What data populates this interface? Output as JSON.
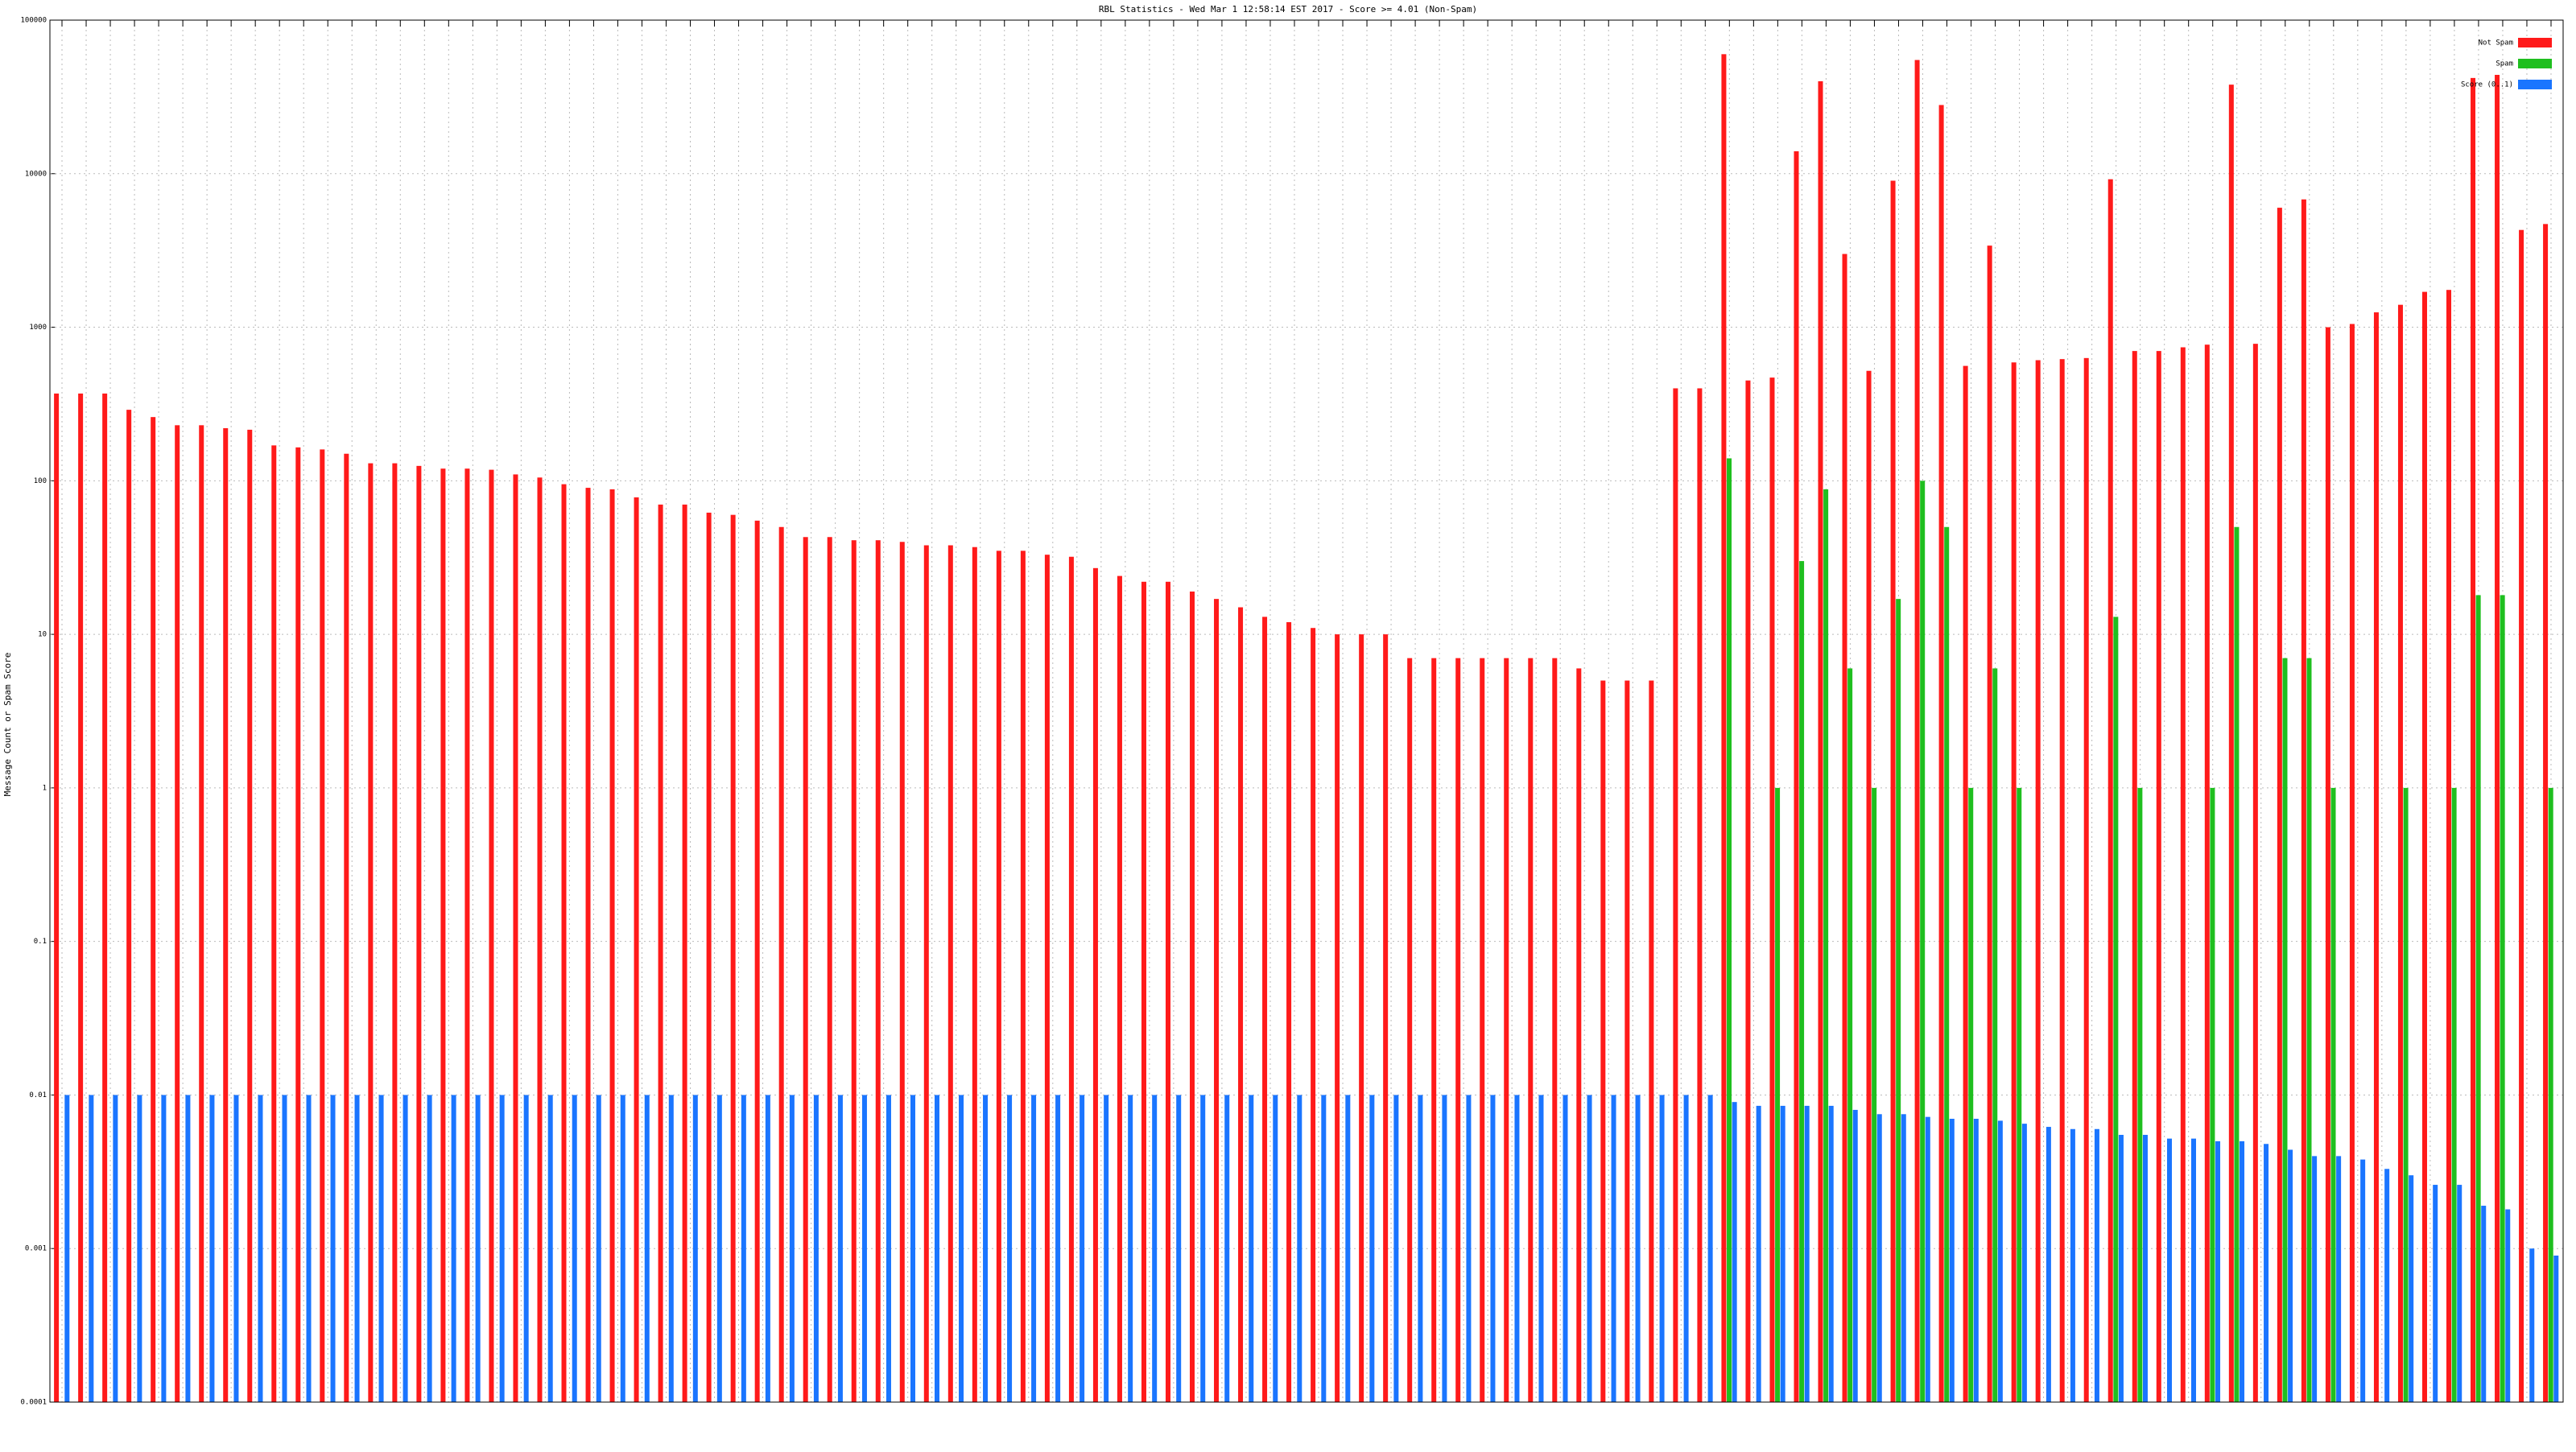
{
  "chart_data": {
    "type": "bar",
    "title": "RBL Statistics - Wed Mar  1 12:58:14 EST 2017 - Score >= 4.01 (Non-Spam)",
    "y_label": "Message Count or Spam Score",
    "log_scale": true,
    "grid": true,
    "legend_position": "top-right",
    "ylim": [
      0.0001,
      100000
    ],
    "yticks": [
      0.0001,
      0.001,
      0.01,
      0.1,
      1,
      10,
      100,
      1000,
      10000,
      100000
    ],
    "categories": [
      null,
      null,
      null,
      null,
      null,
      null,
      null,
      null,
      null,
      null,
      null,
      null,
      null,
      null,
      null,
      null,
      null,
      null,
      null,
      null,
      null,
      null,
      null,
      null,
      null,
      null,
      null,
      null,
      null,
      null,
      null,
      null,
      null,
      null,
      null,
      null,
      null,
      null,
      null,
      null,
      null,
      null,
      null,
      null,
      null,
      null,
      null,
      null,
      null,
      null,
      null,
      null,
      null,
      null,
      null,
      null,
      null,
      null,
      null,
      null,
      null,
      null,
      null,
      null,
      null,
      null,
      null,
      null,
      null,
      null,
      null,
      null,
      null,
      null,
      null,
      null,
      null,
      null,
      null,
      null,
      null,
      null,
      null,
      null,
      null,
      null,
      null,
      null,
      null,
      null,
      null,
      null,
      null,
      null,
      null,
      null,
      null,
      null,
      null,
      null,
      null,
      null,
      null,
      null
    ],
    "series": [
      {
        "name": "Not Spam",
        "color": "#ff1a1a",
        "values": [
          370,
          370,
          370,
          290,
          260,
          230,
          230,
          220,
          215,
          170,
          165,
          160,
          150,
          130,
          130,
          125,
          120,
          120,
          118,
          110,
          105,
          95,
          90,
          88,
          78,
          70,
          70,
          62,
          60,
          55,
          50,
          43,
          43,
          41,
          41,
          40,
          38,
          38,
          37,
          35,
          35,
          33,
          32,
          27,
          24,
          22,
          22,
          19,
          17,
          15,
          13,
          12,
          11,
          10,
          10,
          10,
          7,
          7,
          7,
          7,
          7,
          7,
          7,
          6,
          5,
          5,
          5,
          400,
          400,
          60000,
          450,
          470,
          14000,
          40000,
          3000,
          520,
          9000,
          55000,
          28000,
          560,
          3400,
          590,
          610,
          620,
          630,
          9200,
          700,
          700,
          740,
          770,
          38000,
          780,
          6000,
          6800,
          1000,
          1050,
          1250,
          1400,
          1700,
          1750,
          42000,
          44000,
          4300,
          4700
        ]
      },
      {
        "name": "Spam",
        "color": "#1fbf1f",
        "values": [
          null,
          null,
          null,
          null,
          null,
          null,
          null,
          null,
          null,
          null,
          null,
          null,
          null,
          null,
          null,
          null,
          null,
          null,
          null,
          null,
          null,
          null,
          null,
          null,
          null,
          null,
          null,
          null,
          null,
          null,
          null,
          null,
          null,
          null,
          null,
          null,
          null,
          null,
          null,
          null,
          null,
          null,
          null,
          null,
          null,
          null,
          null,
          null,
          null,
          null,
          null,
          null,
          null,
          null,
          null,
          null,
          null,
          null,
          null,
          null,
          null,
          null,
          null,
          null,
          null,
          null,
          null,
          null,
          null,
          140,
          null,
          1,
          30,
          88,
          6,
          1,
          17,
          100,
          50,
          1,
          6,
          1,
          null,
          null,
          null,
          13,
          1,
          null,
          null,
          1,
          50,
          null,
          7,
          7,
          1,
          null,
          null,
          1,
          null,
          1,
          18,
          18,
          null,
          1
        ]
      },
      {
        "name": "Score (0..1)",
        "color": "#1a75ff",
        "values": [
          0.01,
          0.01,
          0.01,
          0.01,
          0.01,
          0.01,
          0.01,
          0.01,
          0.01,
          0.01,
          0.01,
          0.01,
          0.01,
          0.01,
          0.01,
          0.01,
          0.01,
          0.01,
          0.01,
          0.01,
          0.01,
          0.01,
          0.01,
          0.01,
          0.01,
          0.01,
          0.01,
          0.01,
          0.01,
          0.01,
          0.01,
          0.01,
          0.01,
          0.01,
          0.01,
          0.01,
          0.01,
          0.01,
          0.01,
          0.01,
          0.01,
          0.01,
          0.01,
          0.01,
          0.01,
          0.01,
          0.01,
          0.01,
          0.01,
          0.01,
          0.01,
          0.01,
          0.01,
          0.01,
          0.01,
          0.01,
          0.01,
          0.01,
          0.01,
          0.01,
          0.01,
          0.01,
          0.01,
          0.01,
          0.01,
          0.01,
          0.01,
          0.01,
          0.01,
          0.009,
          0.0085,
          0.0085,
          0.0085,
          0.0085,
          0.008,
          0.0075,
          0.0075,
          0.0072,
          0.007,
          0.007,
          0.0068,
          0.0065,
          0.0062,
          0.006,
          0.006,
          0.0055,
          0.0055,
          0.0052,
          0.0052,
          0.005,
          0.005,
          0.0048,
          0.0044,
          0.004,
          0.004,
          0.0038,
          0.0033,
          0.003,
          0.0026,
          0.0026,
          0.0019,
          0.0018,
          0.001,
          0.0009
        ]
      }
    ]
  }
}
